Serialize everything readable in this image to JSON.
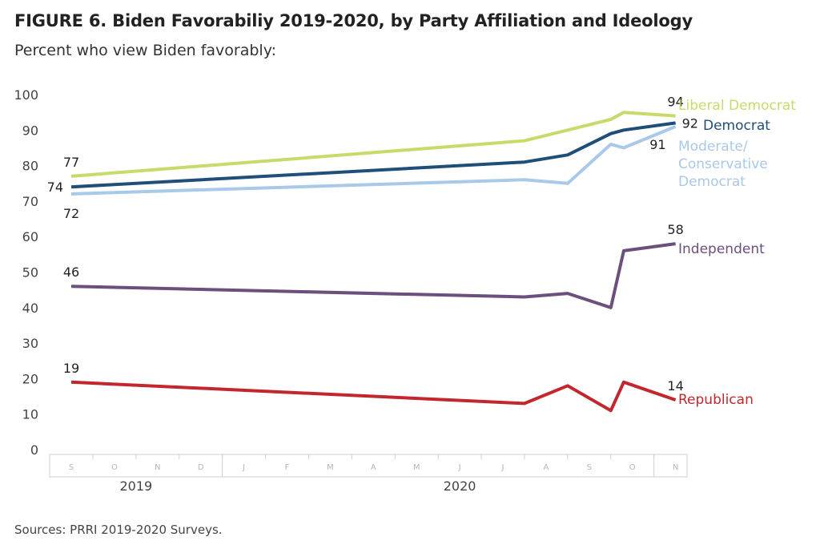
{
  "title": "FIGURE 6. Biden Favorabiliy 2019-2020, by Party Affiliation and Ideology",
  "subtitle": "Percent who view Biden favorably:",
  "source": "Sources: PRRI 2019-2020 Surveys.",
  "chart_data": {
    "type": "line",
    "title": "FIGURE 6. Biden Favorabiliy 2019-2020, by Party Affiliation and Ideology",
    "subtitle": "Percent who view Biden favorably:",
    "ylim": [
      0,
      100
    ],
    "yticks": [
      0,
      10,
      20,
      30,
      40,
      50,
      60,
      70,
      80,
      90,
      100
    ],
    "months": [
      "S",
      "O",
      "N",
      "D",
      "J",
      "F",
      "M",
      "A",
      "M",
      "J",
      "J",
      "A",
      "S",
      "O",
      "N"
    ],
    "years": [
      {
        "label": "2019",
        "month_index": 1.5
      },
      {
        "label": "2020",
        "month_index": 9
      }
    ],
    "year_separators": [
      3.5,
      13.5
    ],
    "grid": false,
    "legend": "right-end labels",
    "series": [
      {
        "name": "Liberal Democrat",
        "color": "#c5dc6b",
        "label_lines": [
          "Liberal Democrat"
        ],
        "points": [
          [
            0,
            77
          ],
          [
            10.5,
            87
          ],
          [
            11.5,
            90
          ],
          [
            12.5,
            93
          ],
          [
            12.8,
            95
          ],
          [
            14,
            94
          ]
        ],
        "value_labels": [
          {
            "index": 0,
            "text": "77",
            "pos": "above"
          },
          {
            "index": 5,
            "text": "94",
            "pos": "above"
          }
        ]
      },
      {
        "name": "Democrat",
        "color": "#1f4e79",
        "label_lines": [
          "Democrat"
        ],
        "points": [
          [
            0,
            74
          ],
          [
            10.5,
            81
          ],
          [
            11.5,
            83
          ],
          [
            12.5,
            89
          ],
          [
            12.8,
            90
          ],
          [
            14,
            92
          ]
        ],
        "value_labels": [
          {
            "index": 0,
            "text": "74",
            "pos": "left"
          },
          {
            "index": 5,
            "text": "92",
            "pos": "right"
          }
        ]
      },
      {
        "name": "Moderate/ Conservative Democrat",
        "color": "#a9c9e8",
        "label_lines": [
          "Moderate/",
          "Conservative",
          "Democrat"
        ],
        "points": [
          [
            0,
            72
          ],
          [
            10.5,
            76
          ],
          [
            11.5,
            75
          ],
          [
            12.5,
            86
          ],
          [
            12.8,
            85
          ],
          [
            14,
            91
          ]
        ],
        "value_labels": [
          {
            "index": 0,
            "text": "72",
            "pos": "below"
          },
          {
            "index": 5,
            "text": "91",
            "pos": "below-left"
          }
        ]
      },
      {
        "name": "Independent",
        "color": "#6b4f7c",
        "label_lines": [
          "Independent"
        ],
        "points": [
          [
            0,
            46
          ],
          [
            10.5,
            43
          ],
          [
            11.5,
            44
          ],
          [
            12.5,
            40
          ],
          [
            12.8,
            56
          ],
          [
            14,
            58
          ]
        ],
        "value_labels": [
          {
            "index": 0,
            "text": "46",
            "pos": "above"
          },
          {
            "index": 5,
            "text": "58",
            "pos": "above"
          }
        ]
      },
      {
        "name": "Republican",
        "color": "#c1272d",
        "label_lines": [
          "Republican"
        ],
        "points": [
          [
            0,
            19
          ],
          [
            10.5,
            13
          ],
          [
            11.5,
            18
          ],
          [
            12.5,
            11
          ],
          [
            12.8,
            19
          ],
          [
            14,
            14
          ]
        ],
        "value_labels": [
          {
            "index": 0,
            "text": "19",
            "pos": "above"
          },
          {
            "index": 5,
            "text": "14",
            "pos": "above"
          }
        ]
      }
    ]
  }
}
